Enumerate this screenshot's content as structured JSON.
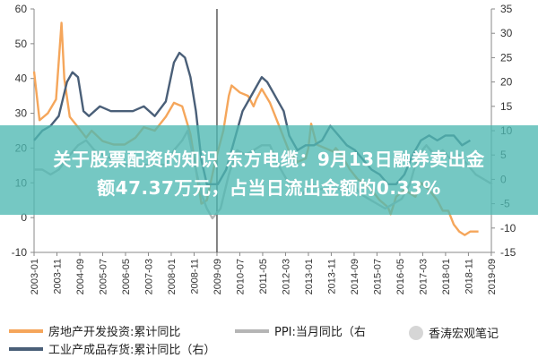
{
  "banner": {
    "line1": "关于股票配资的知识 东方电缆：9月13日融券卖出金",
    "line2": "额47.37万元，占当日流出金额的0.33%"
  },
  "legend": {
    "items": [
      {
        "label": "房地产开发投资:累计同比",
        "color": "#f5a65b"
      },
      {
        "label": "PPI:当月同比（右",
        "color": "#b5b5b5"
      },
      {
        "label": "工业产成品存货:累计同比（右）",
        "color": "#4a5f78"
      }
    ]
  },
  "watermark": {
    "text": "香涛宏观笔记",
    "icon": "wechat-icon"
  },
  "chart_data": {
    "type": "line",
    "x_ticks": [
      "2003-01",
      "2003-11",
      "2004-09",
      "2005-07",
      "2006-05",
      "2007-03",
      "2008-01",
      "2008-11",
      "2009-09",
      "2010-07",
      "2011-05",
      "2012-03",
      "2013-01",
      "2013-11",
      "2014-09",
      "2015-07",
      "2016-05",
      "2017-03",
      "2018-01",
      "2018-11",
      "2019-09"
    ],
    "y_left": {
      "ticks": [
        -10,
        0,
        10,
        20,
        30,
        40,
        50,
        60
      ],
      "range": [
        -10,
        60
      ]
    },
    "y_right": {
      "ticks": [
        -15,
        -10,
        -5,
        0,
        5,
        10,
        15,
        20,
        25,
        30,
        35
      ],
      "range": [
        -15,
        35
      ]
    },
    "series": [
      {
        "name": "房地产开发投资:累计同比",
        "axis": "left",
        "color": "#f5a65b",
        "x": [
          2003.0,
          2003.2,
          2003.5,
          2003.8,
          2004.0,
          2004.1,
          2004.3,
          2004.6,
          2004.9,
          2005.1,
          2005.5,
          2005.9,
          2006.3,
          2006.7,
          2007.0,
          2007.4,
          2007.8,
          2008.1,
          2008.4,
          2008.7,
          2008.9,
          2009.1,
          2009.3,
          2009.6,
          2009.9,
          2010.1,
          2010.2,
          2010.5,
          2010.8,
          2011.0,
          2011.1,
          2011.3,
          2011.6,
          2011.9,
          2012.1,
          2012.3,
          2012.6,
          2012.9,
          2013.0,
          2013.1,
          2013.3,
          2013.6,
          2013.9,
          2014.0,
          2014.2,
          2014.5,
          2014.8,
          2015.0,
          2015.3,
          2015.6,
          2015.9,
          2016.0,
          2016.2,
          2016.5,
          2016.9,
          2017.1,
          2017.4,
          2017.7,
          2017.9,
          2018.1,
          2018.3,
          2018.5,
          2018.7,
          2018.9,
          2019.2
        ],
        "y": [
          42,
          28,
          30,
          34,
          56,
          40,
          29,
          26,
          23,
          25,
          22,
          21,
          21,
          23,
          26,
          25,
          29,
          33,
          32,
          24,
          14,
          4,
          5,
          16,
          25,
          35,
          38,
          36,
          35,
          32,
          34,
          37,
          33,
          27,
          23,
          19,
          16,
          17,
          20,
          27,
          21,
          20,
          19,
          20,
          18,
          14,
          11,
          10,
          8,
          5,
          3,
          1,
          6,
          8,
          6,
          10,
          8,
          5,
          2,
          2,
          -2,
          -4,
          -5,
          -4,
          -4
        ]
      },
      {
        "name": "工业产成品存货:累计同比（右）",
        "axis": "right",
        "color": "#4a5f78",
        "x": [
          2003.0,
          2003.3,
          2003.6,
          2003.9,
          2004.2,
          2004.4,
          2004.6,
          2004.8,
          2005.0,
          2005.4,
          2005.8,
          2006.2,
          2006.6,
          2007.0,
          2007.4,
          2007.8,
          2008.1,
          2008.3,
          2008.5,
          2008.7,
          2008.9,
          2009.1,
          2009.3,
          2009.5,
          2009.7,
          2010.0,
          2010.3,
          2010.6,
          2010.9,
          2011.1,
          2011.3,
          2011.5,
          2011.7,
          2011.9,
          2012.1,
          2012.3,
          2012.6,
          2012.9,
          2013.2,
          2013.5,
          2013.8,
          2014.1,
          2014.4,
          2014.7,
          2015.0,
          2015.3,
          2015.6,
          2015.9,
          2016.2,
          2016.5,
          2016.8,
          2017.1,
          2017.4,
          2017.7,
          2018.0,
          2018.3,
          2018.6,
          2018.9
        ],
        "y": [
          8,
          10,
          11,
          13,
          20,
          22,
          21,
          14,
          13,
          15,
          14,
          14,
          14,
          15,
          13,
          16,
          24,
          26,
          25,
          21,
          14,
          4,
          -1,
          -1,
          -1,
          2,
          8,
          14,
          17,
          19,
          21,
          20,
          18,
          16,
          14,
          9,
          6,
          7,
          7,
          8,
          11,
          9,
          7,
          6,
          4,
          2,
          1,
          -1,
          -1,
          1,
          5,
          8,
          9,
          8,
          9,
          9,
          7,
          8
        ]
      },
      {
        "name": "PPI:当月同比（右",
        "axis": "right",
        "color": "#b5b5b5",
        "x": [
          2003.0,
          2003.3,
          2003.6,
          2003.9,
          2004.3,
          2004.6,
          2004.9,
          2005.2,
          2005.5,
          2005.9,
          2006.2,
          2006.6,
          2007.0,
          2007.4,
          2007.8,
          2008.1,
          2008.4,
          2008.6,
          2008.9,
          2009.1,
          2009.3,
          2009.5,
          2009.8,
          2010.1,
          2010.4,
          2010.7,
          2011.0,
          2011.3,
          2011.6,
          2011.9,
          2012.2,
          2012.5,
          2012.8,
          2013.1,
          2013.4,
          2013.7,
          2014.0,
          2014.3,
          2014.6,
          2014.9,
          2015.2,
          2015.5,
          2015.8,
          2016.1,
          2016.4,
          2016.7,
          2017.0,
          2017.3,
          2017.6,
          2017.9,
          2018.2,
          2018.5,
          2018.8,
          2019.1,
          2019.4,
          2019.7
        ],
        "y": [
          2,
          2,
          1,
          2,
          5,
          7,
          8,
          6,
          5,
          4,
          3,
          3,
          3,
          3,
          3,
          6,
          8,
          10,
          2,
          -3,
          -6,
          -8,
          -6,
          1,
          6,
          5,
          6,
          7,
          7,
          3,
          0,
          -2,
          -3,
          -1,
          -2,
          -2,
          -2,
          -2,
          -1,
          -3,
          -4,
          -5,
          -6,
          -5,
          -4,
          -1,
          5,
          7,
          5,
          6,
          4,
          5,
          3,
          1,
          0,
          -1
        ]
      }
    ]
  }
}
